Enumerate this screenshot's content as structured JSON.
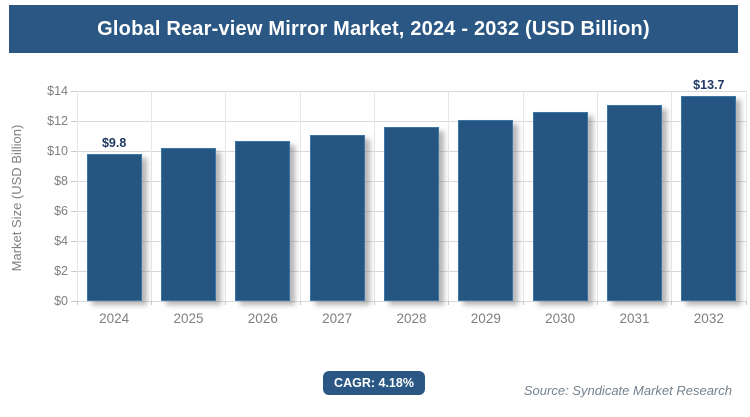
{
  "header": {
    "title": "Global Rear-view Mirror Market, 2024 - 2032 (USD Billion)"
  },
  "chart_data": {
    "type": "bar",
    "title": "Global Rear-view Mirror Market, 2024 - 2032 (USD Billion)",
    "categories": [
      "2024",
      "2025",
      "2026",
      "2027",
      "2028",
      "2029",
      "2030",
      "2031",
      "2032"
    ],
    "values": [
      9.8,
      10.2,
      10.7,
      11.1,
      11.6,
      12.1,
      12.6,
      13.1,
      13.7
    ],
    "value_labels": [
      "$9.8",
      "",
      "",
      "",
      "",
      "",
      "",
      "",
      "$13.7"
    ],
    "xlabel": "",
    "ylabel": "Market Size (USD Billion)",
    "ylim": [
      0,
      14
    ],
    "ytick_step": 2,
    "ytick_prefix": "$",
    "grid": true,
    "legend": false
  },
  "footer": {
    "cagr_badge": "CAGR: 4.18%",
    "source": "Source: Syndicate Market Research"
  },
  "colors": {
    "banner_bg": "#2A5783",
    "bar_fill": "#255581",
    "bar_border": "#3B76A8",
    "data_label": "#1F3864",
    "axis_text": "#7F7F7F",
    "gridline": "#D9D9D9",
    "badge_bg": "#2A5783",
    "source_text": "#76828E"
  }
}
